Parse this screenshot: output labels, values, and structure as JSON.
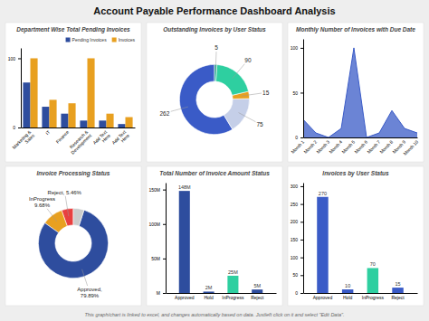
{
  "title": "Account Payable Performance Dashboard Analysis",
  "annotations": [
    "This graph/chart is linked to excel, and changes automatically based on data. Justleft click on it and select \"Edit Data\"."
  ],
  "chart_data": [
    {
      "type": "bar",
      "title": "Department Wise Total Pending Invoices",
      "categories": [
        "Marketing &\nSales",
        "IT",
        "Finance",
        "Research &\nDevelopment",
        "Add Text\nHere",
        "Add Text\nHere"
      ],
      "series": [
        {
          "name": "Pending Invoices",
          "color": "#2e4d9e",
          "values": [
            65,
            30,
            20,
            10,
            10,
            5
          ]
        },
        {
          "name": "Invoices",
          "color": "#e8a020",
          "values": [
            100,
            40,
            35,
            100,
            20,
            15
          ]
        }
      ],
      "ylim": [
        0,
        115
      ],
      "yticks": [
        0,
        100
      ],
      "legend": "upper right"
    },
    {
      "type": "donut",
      "title": "Outstanding Invoices by User Status",
      "values": [
        262,
        75,
        15,
        90,
        5
      ],
      "colors": [
        "#3a5bc7",
        "#c5cfe8",
        "#e8a020",
        "#2ecfa0",
        "#1aaa8a"
      ],
      "data_labels": true
    },
    {
      "type": "area",
      "title": "Monthly Number of Invoices with Due Date",
      "categories": [
        "Month 1",
        "Month 2",
        "Month 3",
        "Month 4",
        "Month 5",
        "Month 6",
        "Month 7",
        "Month 8",
        "Month 9",
        "Month 10"
      ],
      "values": [
        20,
        5,
        0,
        10,
        100,
        0,
        5,
        30,
        10,
        5
      ],
      "color": "#3a5bc7",
      "ylim": [
        0,
        110
      ],
      "yticks": [
        0,
        50,
        100
      ]
    },
    {
      "type": "donut",
      "title": "Invoice Processing Status",
      "values": [
        5.46,
        9.68,
        79.89,
        4.97
      ],
      "value_labels": [
        "Reject, 5.46%",
        "InProgress\n9.68%",
        "Approved,\n79.89%",
        null
      ],
      "colors": [
        "#e84040",
        "#e8a020",
        "#2e4d9e",
        "#cccccc"
      ],
      "data_labels": true
    },
    {
      "type": "bar",
      "title": "Total Number of Invoice Amount Status",
      "categories": [
        "Approved",
        "Hold",
        "InProgress",
        "Reject"
      ],
      "values": [
        148,
        2,
        25,
        5
      ],
      "value_labels": [
        "148M",
        "2M",
        "25M",
        "5M"
      ],
      "colors": [
        "#2e4d9e",
        "#2e4d9e",
        "#2ecfa0",
        "#2e4d9e"
      ],
      "ylim": [
        0,
        160
      ],
      "yticks": [
        {
          "value": 0,
          "label": "M"
        },
        {
          "value": 50,
          "label": "50M"
        },
        {
          "value": 100,
          "label": "100M"
        },
        {
          "value": 150,
          "label": "150M"
        }
      ],
      "data_labels": true
    },
    {
      "type": "bar",
      "title": "Invoices by User Status",
      "categories": [
        "Approved",
        "Hold",
        "InProgress",
        "Reject"
      ],
      "values": [
        270,
        10,
        70,
        15
      ],
      "colors": [
        "#3a5bc7",
        "#3a5bc7",
        "#2ecfa0",
        "#3a5bc7"
      ],
      "ylim": [
        0,
        310
      ],
      "yticks": [
        0,
        50,
        100,
        150,
        200,
        250,
        300
      ],
      "data_labels": true
    }
  ]
}
